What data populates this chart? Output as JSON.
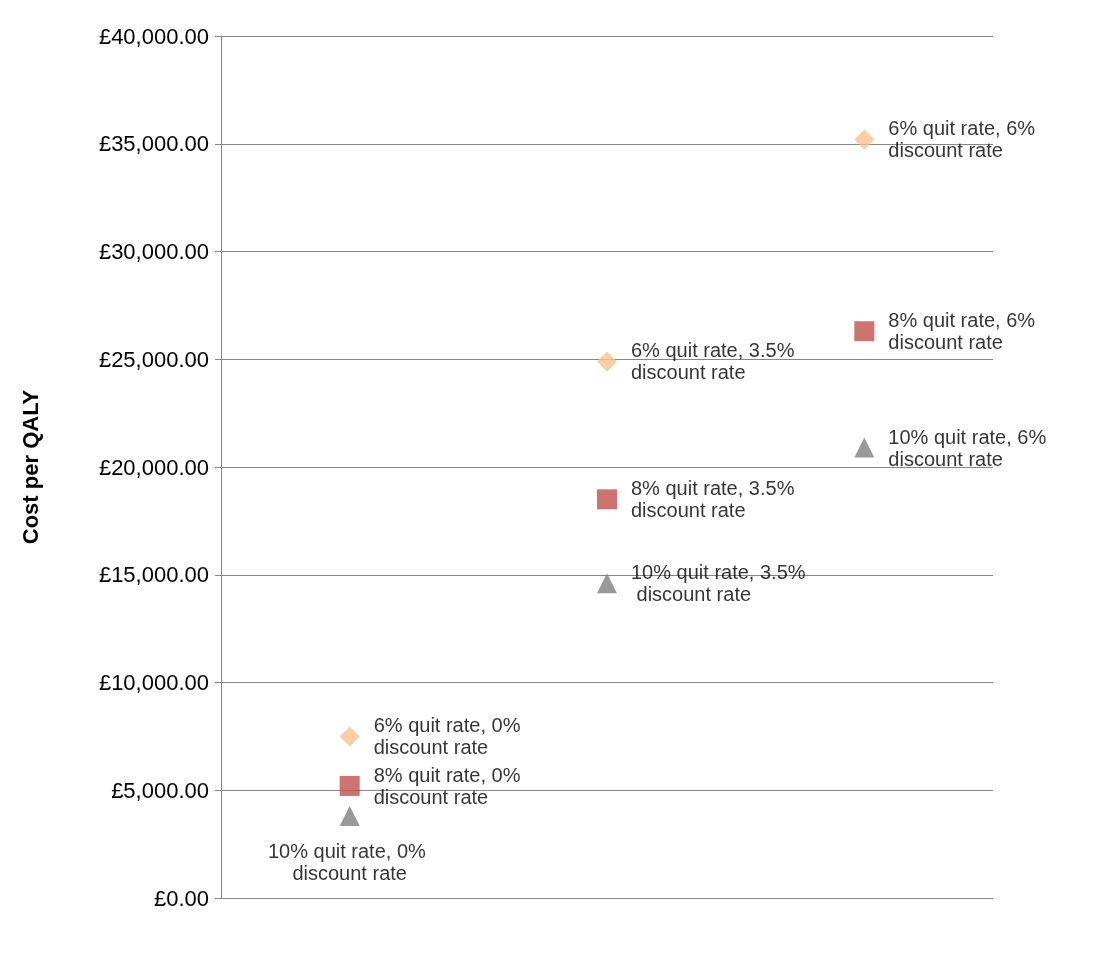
{
  "chart_data": {
    "type": "scatter",
    "ylabel": "Cost per QALY",
    "categories": [
      null,
      null,
      null
    ],
    "ylim": [
      0,
      40000
    ],
    "yticks": [
      {
        "value": 0,
        "label": "£0.00"
      },
      {
        "value": 5000,
        "label": "£5,000.00"
      },
      {
        "value": 10000,
        "label": "£10,000.00"
      },
      {
        "value": 15000,
        "label": "£15,000.00"
      },
      {
        "value": 20000,
        "label": "£20,000.00"
      },
      {
        "value": 25000,
        "label": "£25,000.00"
      },
      {
        "value": 30000,
        "label": "£30,000.00"
      },
      {
        "value": 35000,
        "label": "£35,000.00"
      },
      {
        "value": 40000,
        "label": "£40,000.00"
      }
    ],
    "tick_labels": "y",
    "grid": "y",
    "series": [
      {
        "marker": "diamond",
        "color": "#fac090",
        "values": [
          7500,
          24900,
          35200
        ],
        "value_labels": [
          "6% quit rate, 0% discount rate",
          "6% quit rate, 3.5% discount rate",
          "6% quit rate, 6% discount rate"
        ]
      },
      {
        "marker": "square",
        "color": "#c0504d",
        "values": [
          5200,
          18500,
          26300
        ],
        "value_labels": [
          "8% quit rate, 0% discount rate",
          "8% quit rate, 3.5% discount rate",
          "8% quit rate, 6% discount rate"
        ]
      },
      {
        "marker": "triangle",
        "color": "#7f7f7f",
        "values": [
          3800,
          14600,
          20900
        ],
        "value_labels": [
          "10% quit rate, 0% discount rate",
          "10% quit rate, 3.5% discount rate",
          "10% quit rate, 6% discount rate"
        ]
      }
    ]
  }
}
